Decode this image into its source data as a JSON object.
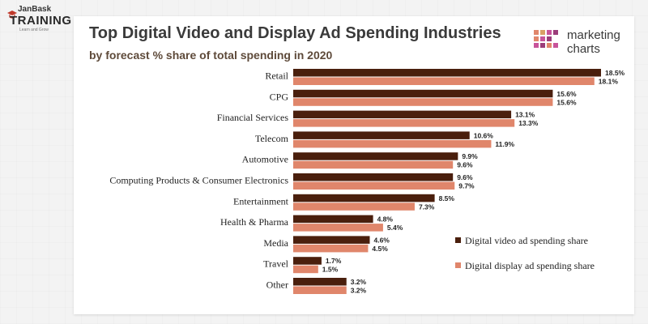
{
  "brand": {
    "top": "JanBask",
    "main": "TRAINING",
    "sub": "Learn and Grow"
  },
  "header": {
    "title": "Top Digital Video and Display Ad Spending Industries",
    "subtitle": "by forecast % share of total spending in 2020"
  },
  "logo": {
    "line1": "marketing",
    "line2": "charts"
  },
  "colors": {
    "video": "#4a1f0d",
    "display": "#e0866b",
    "title": "#3a3a3a"
  },
  "chart_data": {
    "type": "bar",
    "orientation": "horizontal",
    "title": "Top Digital Video and Display Ad Spending Industries",
    "subtitle": "by forecast % share of total spending in 2020",
    "categories": [
      "Retail",
      "CPG",
      "Financial Services",
      "Telecom",
      "Automotive",
      "Computing Products & Consumer Electronics",
      "Entertainment",
      "Health & Pharma",
      "Media",
      "Travel",
      "Other"
    ],
    "series": [
      {
        "name": "Digital video ad spending share",
        "values": [
          18.5,
          15.6,
          13.1,
          10.6,
          9.9,
          9.6,
          8.5,
          4.8,
          4.6,
          1.7,
          3.2
        ],
        "labels": [
          "18.5%",
          "15.6%",
          "13.1%",
          "10.6%",
          "9.9%",
          "9.6%",
          "8.5%",
          "4.8%",
          "4.6%",
          "1.7%",
          "3.2%"
        ]
      },
      {
        "name": "Digital display ad spending share",
        "values": [
          18.1,
          15.6,
          13.3,
          11.9,
          9.6,
          9.7,
          7.3,
          5.4,
          4.5,
          1.5,
          3.2
        ],
        "labels": [
          "18.1%",
          "15.6%",
          "13.3%",
          "11.9%",
          "9.6%",
          "9.7%",
          "7.3%",
          "5.4%",
          "4.5%",
          "1.5%",
          "3.2%"
        ]
      }
    ],
    "xlim": [
      0,
      18.5
    ],
    "legend_position": "bottom-right",
    "grid": false
  }
}
